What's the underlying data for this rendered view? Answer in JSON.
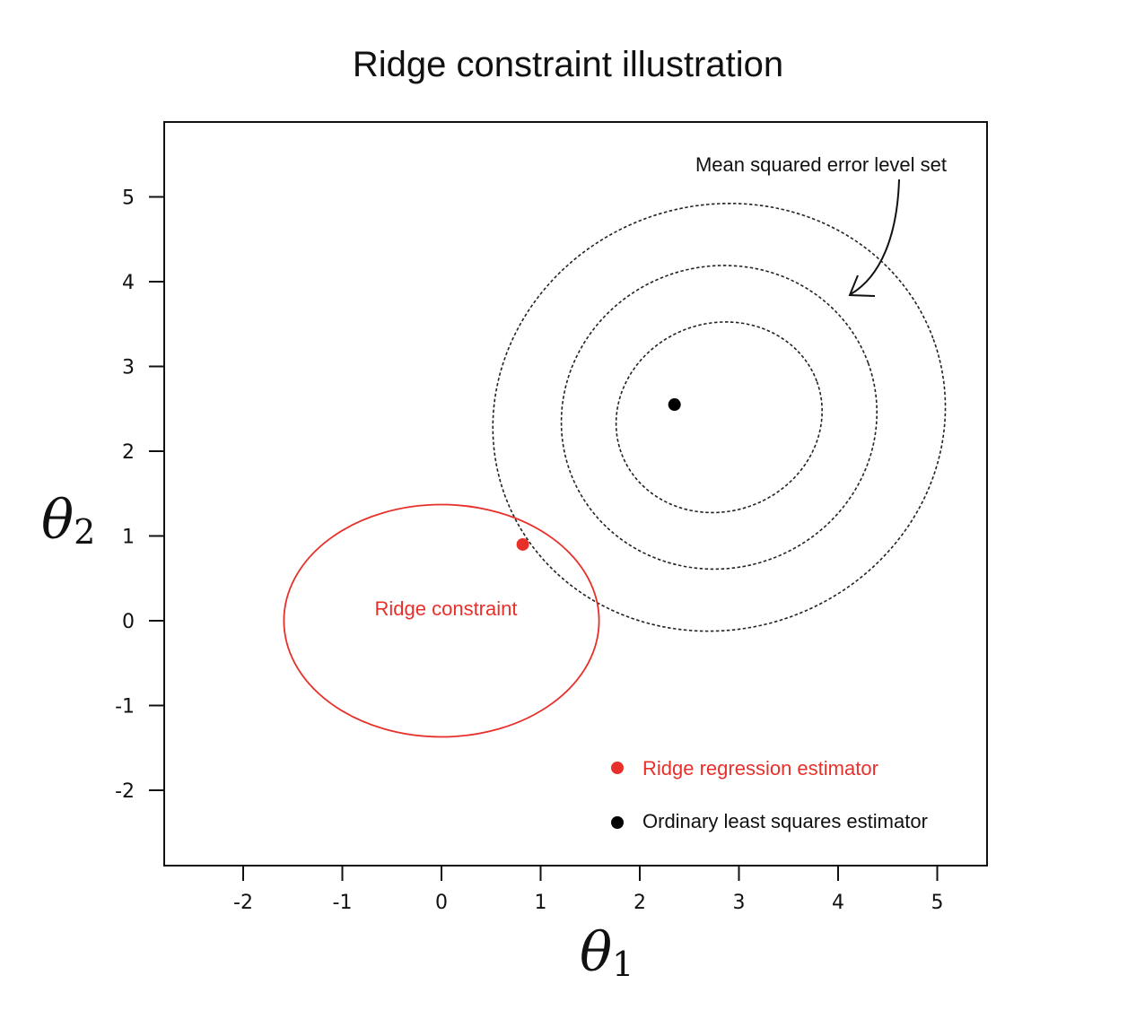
{
  "chart_data": {
    "type": "scatter",
    "title": "Ridge constraint illustration",
    "xlabel": {
      "symbol": "θ",
      "subscript": "1"
    },
    "ylabel": {
      "symbol": "θ",
      "subscript": "2"
    },
    "xlim": [
      -2.7,
      5.6
    ],
    "ylim": [
      -2.8,
      5.8
    ],
    "xticks": [
      -2,
      -1,
      0,
      1,
      2,
      3,
      4,
      5
    ],
    "yticks": [
      -2,
      -1,
      0,
      1,
      2,
      3,
      4,
      5
    ],
    "ols_estimator": {
      "x": 2.35,
      "y": 2.55,
      "color": "#000000"
    },
    "ridge_estimator": {
      "x": 0.82,
      "y": 0.9,
      "color": "#e8302b"
    },
    "ridge_constraint": {
      "center": [
        0,
        0
      ],
      "radius": 1.37,
      "color": "#e8302b",
      "label": "Ridge constraint"
    },
    "level_sets": [
      {
        "center": [
          2.8,
          2.4
        ],
        "radii": [
          1.05,
          1.11
        ],
        "angle_deg": -20
      },
      {
        "center": [
          2.8,
          2.4
        ],
        "radii": [
          1.6,
          1.78
        ],
        "angle_deg": -20
      },
      {
        "center": [
          2.8,
          2.4
        ],
        "radii": [
          2.3,
          2.5
        ],
        "angle_deg": -20
      }
    ],
    "annotations": {
      "level_set_label": "Mean squared error level set"
    },
    "legend": {
      "placement": "bottom-right",
      "items": [
        {
          "label": "Ridge regression estimator",
          "color": "#e8302b"
        },
        {
          "label": "Ordinary least squares estimator",
          "color": "#000000"
        }
      ]
    },
    "grid": false
  }
}
